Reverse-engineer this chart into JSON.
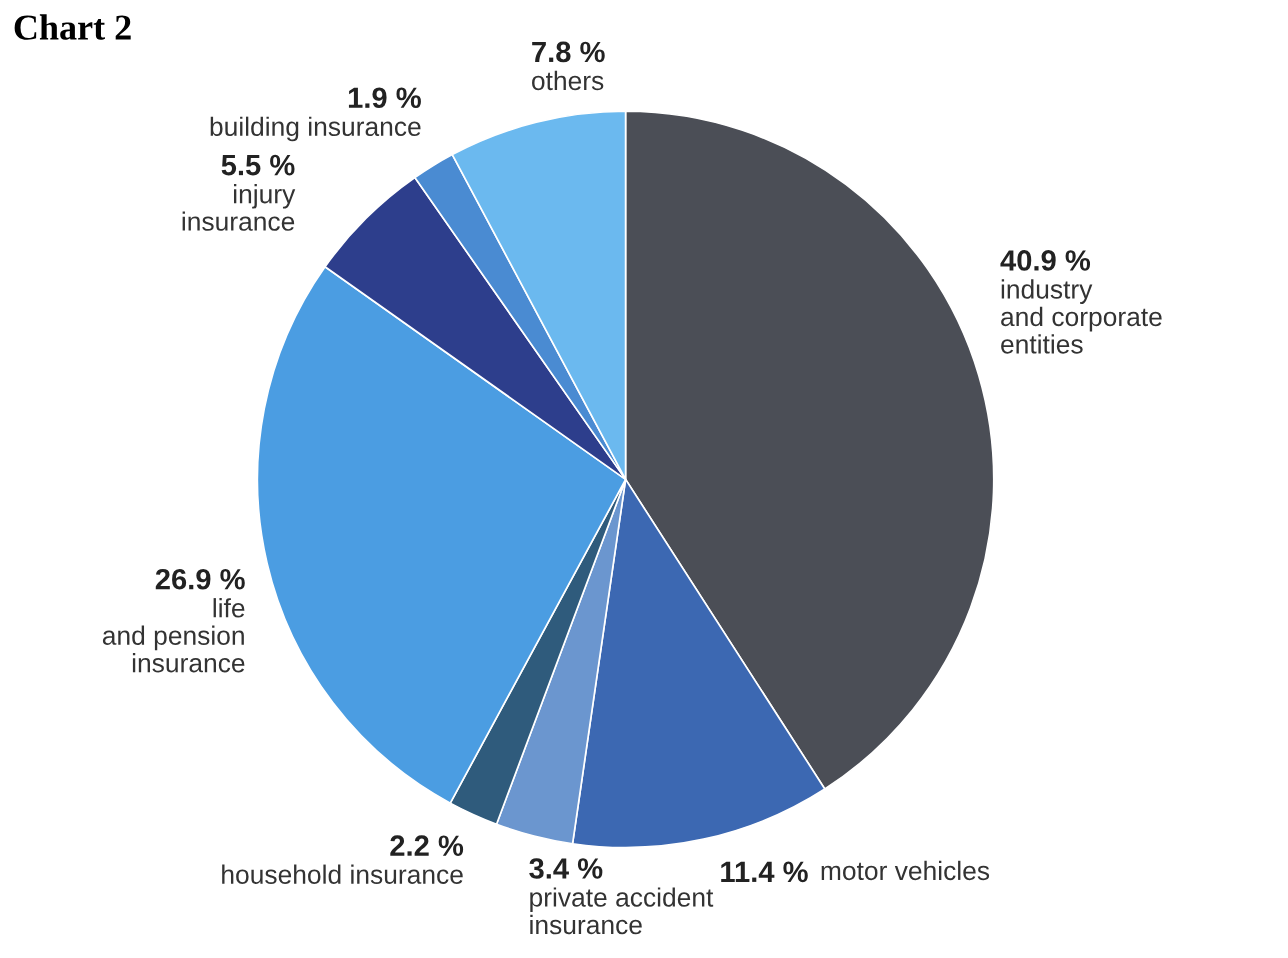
{
  "chart_data": {
    "type": "pie",
    "title": "Chart 2",
    "categories": [
      "industry\nand corporate\nentities",
      "motor vehicles",
      "private accident\ninsurance",
      "household insurance",
      "life\nand pension\ninsurance",
      "injury\ninsurance",
      "building insurance",
      "others"
    ],
    "values": [
      40.9,
      11.4,
      3.4,
      2.2,
      26.9,
      5.5,
      1.9,
      7.8
    ],
    "value_labels": [
      "40.9 %",
      "11.4 %",
      "3.4 %",
      "2.2 %",
      "26.9 %",
      "5.5 %",
      "1.9 %",
      "7.8 %"
    ],
    "colors": [
      "#4b4e56",
      "#3c68b2",
      "#6b96cf",
      "#2f5b7c",
      "#4b9de2",
      "#2d3e8c",
      "#4a8bd2",
      "#6bb9ef"
    ]
  }
}
